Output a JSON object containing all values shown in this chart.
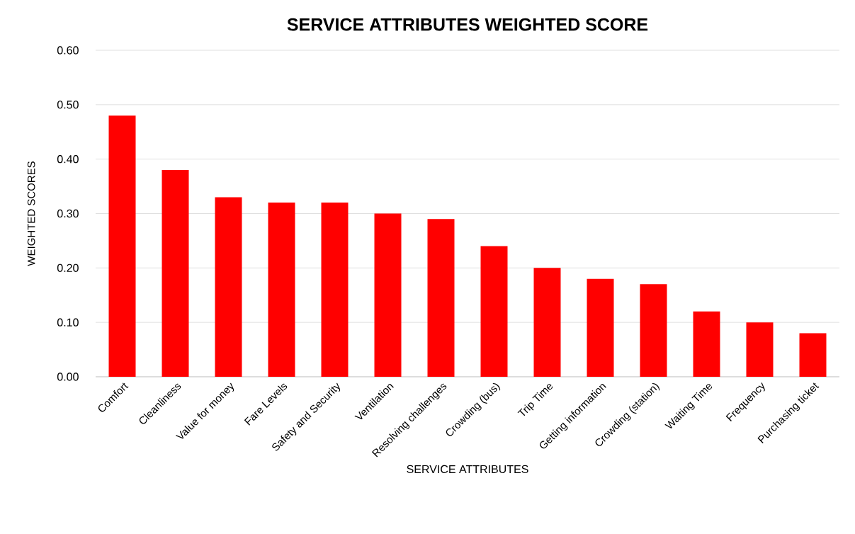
{
  "chart_data": {
    "type": "bar",
    "title": "SERVICE ATTRIBUTES WEIGHTED SCORE",
    "xlabel": "SERVICE ATTRIBUTES",
    "ylabel": "WEIGHTED SCORES",
    "categories": [
      "Comfort",
      "Cleanliness",
      "Value for money",
      "Fare Levels",
      "Safety and Security",
      "Ventilation",
      "Resolving challenges",
      "Crowding (bus)",
      "Trip Time",
      "Getting information",
      "Crowding (station)",
      "Waiting Time",
      "Frequency",
      "Purchasing ticket"
    ],
    "values": [
      0.48,
      0.38,
      0.33,
      0.32,
      0.32,
      0.3,
      0.29,
      0.24,
      0.2,
      0.18,
      0.17,
      0.12,
      0.1,
      0.08
    ],
    "color": "#ff0000",
    "ylim": [
      0,
      0.6
    ],
    "yticks": [
      {
        "value": 0,
        "label": "0.00"
      },
      {
        "value": 0.1,
        "label": "0.10"
      },
      {
        "value": 0.2,
        "label": "0.20"
      },
      {
        "value": 0.3,
        "label": "0.30"
      },
      {
        "value": 0.4,
        "label": "0.40"
      },
      {
        "value": 0.5,
        "label": "0.50"
      },
      {
        "value": 0.6,
        "label": "0.60"
      }
    ],
    "grid": "y"
  }
}
